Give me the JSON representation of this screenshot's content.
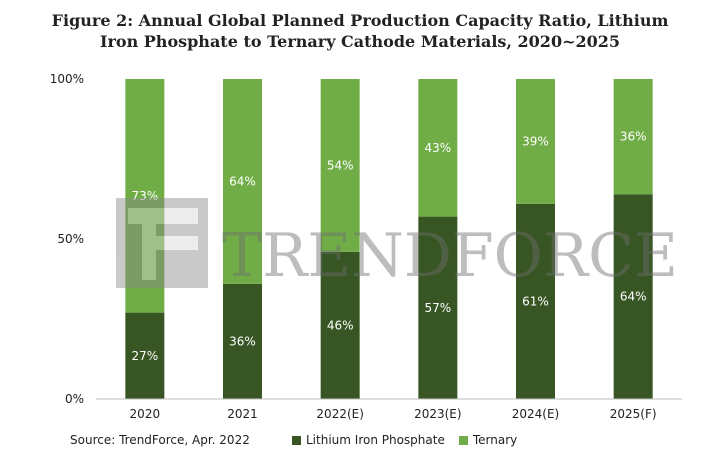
{
  "title_line1": "Figure 2: Annual Global Planned Production Capacity Ratio, Lithium",
  "title_line2": "Iron Phosphate to Ternary Cathode Materials, 2020~2025",
  "source": "Source: TrendForce, Apr. 2022",
  "watermark": "TRENDFORCE",
  "colors": {
    "lfp": "#375623",
    "ternary": "#70AD47",
    "axis": "#bfbfbf"
  },
  "chart_data": {
    "type": "bar",
    "stacked": true,
    "categories": [
      "2020",
      "2021",
      "2022(E)",
      "2023(E)",
      "2024(E)",
      "2025(F)"
    ],
    "series": [
      {
        "name": "Lithium Iron Phosphate",
        "values": [
          27,
          36,
          46,
          57,
          61,
          64
        ],
        "labels": [
          "27%",
          "36%",
          "46%",
          "57%",
          "61%",
          "64%"
        ]
      },
      {
        "name": "Ternary",
        "values": [
          73,
          64,
          54,
          43,
          39,
          36
        ],
        "labels": [
          "73%",
          "64%",
          "54%",
          "43%",
          "39%",
          "36%"
        ]
      }
    ],
    "yticks": [
      "0%",
      "50%",
      "100%"
    ],
    "ylim": [
      0,
      100
    ],
    "legend": "bottom"
  }
}
